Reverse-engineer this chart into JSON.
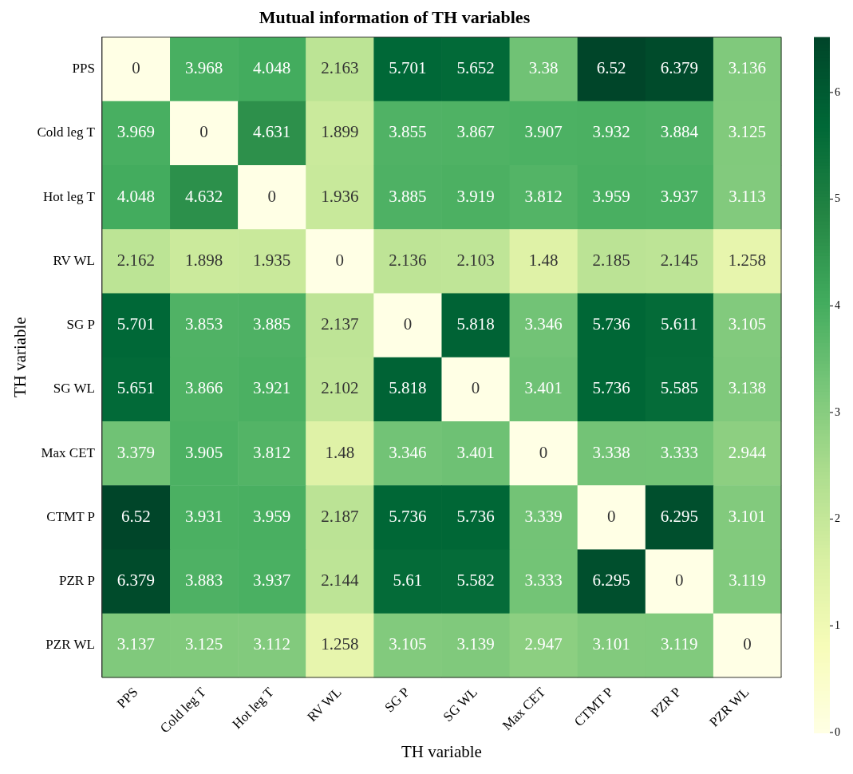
{
  "chart_data": {
    "type": "heatmap",
    "title": "Mutual information of TH variables",
    "xlabel": "TH variable",
    "ylabel": "TH variable",
    "categories": [
      "PPS",
      "Cold leg T",
      "Hot leg T",
      "RV WL",
      "SG P",
      "SG WL",
      "Max CET",
      "CTMT P",
      "PZR P",
      "PZR WL"
    ],
    "y_categories": [
      "PPS",
      "Cold leg T",
      "Hot leg T",
      "RV WL",
      "SG P",
      "SG WL",
      "Max CET",
      "CTMT P",
      "PZR P",
      "PZR WL"
    ],
    "cells": [
      [
        0,
        3.968,
        4.048,
        2.163,
        5.701,
        5.652,
        3.38,
        6.52,
        6.379,
        3.136
      ],
      [
        3.969,
        0,
        4.631,
        1.899,
        3.855,
        3.867,
        3.907,
        3.932,
        3.884,
        3.125
      ],
      [
        4.048,
        4.632,
        0,
        1.936,
        3.885,
        3.919,
        3.812,
        3.959,
        3.937,
        3.113
      ],
      [
        2.162,
        1.898,
        1.935,
        0,
        2.136,
        2.103,
        1.48,
        2.185,
        2.145,
        1.258
      ],
      [
        5.701,
        3.853,
        3.885,
        2.137,
        0,
        5.818,
        3.346,
        5.736,
        5.611,
        3.105
      ],
      [
        5.651,
        3.866,
        3.921,
        2.102,
        5.818,
        0,
        3.401,
        5.736,
        5.585,
        3.138
      ],
      [
        3.379,
        3.905,
        3.812,
        1.48,
        3.346,
        3.401,
        0,
        3.338,
        3.333,
        2.944
      ],
      [
        6.52,
        3.931,
        3.959,
        2.187,
        5.736,
        5.736,
        3.339,
        0,
        6.295,
        3.101
      ],
      [
        6.379,
        3.883,
        3.937,
        2.144,
        5.61,
        5.582,
        3.333,
        6.295,
        0,
        3.119
      ],
      [
        3.137,
        3.125,
        3.112,
        1.258,
        3.105,
        3.139,
        2.947,
        3.101,
        3.119,
        0
      ]
    ],
    "data_labels": true,
    "clim": [
      0,
      6.52
    ],
    "cticks": [
      0,
      1,
      2,
      3,
      4,
      5,
      6
    ]
  }
}
